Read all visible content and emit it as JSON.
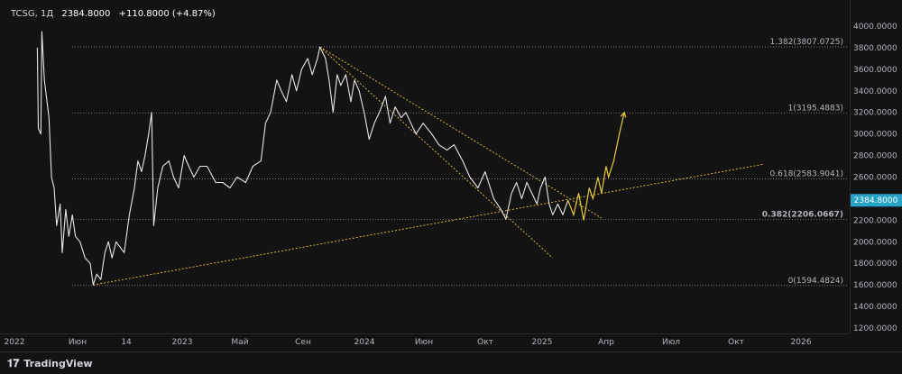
{
  "header": {
    "symbol": "TCSG, 1Д",
    "price": "2384.8000",
    "change": "+110.8000 (+4.87%)"
  },
  "footer": {
    "brand": "TradingView",
    "brand_icon": "tradingview-logo-icon"
  },
  "price_badge": {
    "label": "2384.8000",
    "value": 2384.8,
    "color": "#26a3c7"
  },
  "colors": {
    "price_line": "#e6e6e6",
    "annotation": "#e8c93c",
    "fib": "#8a8a8a",
    "background": "#131313"
  },
  "fib_levels": [
    {
      "label": "1.382(3807.0725)",
      "value": 3807.0725,
      "bold": false
    },
    {
      "label": "1(3195.4883)",
      "value": 3195.4883,
      "bold": false
    },
    {
      "label": "0.618(2583.9041)",
      "value": 2583.9041,
      "bold": false
    },
    {
      "label": "0.382(2206.0667)",
      "value": 2206.0667,
      "bold": true
    },
    {
      "label": "0(1594.4824)",
      "value": 1594.4824,
      "bold": false
    }
  ],
  "chart_data": {
    "type": "line",
    "title": "",
    "xlabel": "",
    "ylabel": "",
    "ylim": [
      1200,
      4000
    ],
    "y_ticks": [
      "4000.0000",
      "3800.0000",
      "3600.0000",
      "3400.0000",
      "3200.0000",
      "3000.0000",
      "2800.0000",
      "2600.0000",
      "2400.0000",
      "2200.0000",
      "2000.0000",
      "1800.0000",
      "1600.0000",
      "1400.0000",
      "1200.0000"
    ],
    "x_ticks": [
      "2022",
      "Июн",
      "14",
      "2023",
      "Май",
      "Сен",
      "2024",
      "Июн",
      "Окт",
      "2025",
      "Апр",
      "Июл",
      "Окт",
      "2026"
    ],
    "x_range": [
      "2022-01-01",
      "2026-04-01"
    ],
    "series": [
      {
        "values": [
          [
            "2022-02-15",
            3800
          ],
          [
            "2022-02-17",
            3050
          ],
          [
            "2022-02-22",
            3000
          ],
          [
            "2022-02-24",
            3950
          ],
          [
            "2022-03-01",
            3500
          ],
          [
            "2022-03-10",
            3150
          ],
          [
            "2022-03-15",
            2600
          ],
          [
            "2022-03-20",
            2500
          ],
          [
            "2022-03-25",
            2150
          ],
          [
            "2022-04-01",
            2350
          ],
          [
            "2022-04-05",
            1900
          ],
          [
            "2022-04-12",
            2300
          ],
          [
            "2022-04-18",
            2050
          ],
          [
            "2022-04-25",
            2250
          ],
          [
            "2022-05-01",
            2050
          ],
          [
            "2022-05-10",
            2000
          ],
          [
            "2022-05-20",
            1850
          ],
          [
            "2022-05-30",
            1800
          ],
          [
            "2022-06-05",
            1600
          ],
          [
            "2022-06-12",
            1700
          ],
          [
            "2022-06-20",
            1650
          ],
          [
            "2022-06-28",
            1900
          ],
          [
            "2022-07-05",
            2000
          ],
          [
            "2022-07-12",
            1850
          ],
          [
            "2022-07-20",
            2000
          ],
          [
            "2022-07-28",
            1950
          ],
          [
            "2022-08-05",
            1900
          ],
          [
            "2022-08-15",
            2250
          ],
          [
            "2022-08-25",
            2500
          ],
          [
            "2022-09-01",
            2750
          ],
          [
            "2022-09-08",
            2650
          ],
          [
            "2022-09-15",
            2800
          ],
          [
            "2022-09-22",
            3000
          ],
          [
            "2022-09-28",
            3200
          ],
          [
            "2022-10-02",
            2150
          ],
          [
            "2022-10-10",
            2500
          ],
          [
            "2022-10-20",
            2700
          ],
          [
            "2022-11-01",
            2750
          ],
          [
            "2022-11-10",
            2600
          ],
          [
            "2022-11-20",
            2500
          ],
          [
            "2022-12-01",
            2800
          ],
          [
            "2022-12-10",
            2700
          ],
          [
            "2022-12-20",
            2600
          ],
          [
            "2023-01-01",
            2700
          ],
          [
            "2023-01-15",
            2700
          ],
          [
            "2023-02-01",
            2550
          ],
          [
            "2023-02-15",
            2550
          ],
          [
            "2023-03-01",
            2500
          ],
          [
            "2023-03-15",
            2600
          ],
          [
            "2023-04-01",
            2550
          ],
          [
            "2023-04-15",
            2700
          ],
          [
            "2023-05-01",
            2750
          ],
          [
            "2023-05-10",
            3100
          ],
          [
            "2023-05-20",
            3200
          ],
          [
            "2023-06-01",
            3500
          ],
          [
            "2023-06-10",
            3400
          ],
          [
            "2023-06-20",
            3300
          ],
          [
            "2023-07-01",
            3550
          ],
          [
            "2023-07-10",
            3400
          ],
          [
            "2023-07-20",
            3600
          ],
          [
            "2023-08-01",
            3700
          ],
          [
            "2023-08-10",
            3550
          ],
          [
            "2023-08-20",
            3700
          ],
          [
            "2023-08-25",
            3807
          ],
          [
            "2023-09-05",
            3700
          ],
          [
            "2023-09-12",
            3500
          ],
          [
            "2023-09-20",
            3200
          ],
          [
            "2023-09-28",
            3550
          ],
          [
            "2023-10-05",
            3450
          ],
          [
            "2023-10-15",
            3550
          ],
          [
            "2023-10-25",
            3300
          ],
          [
            "2023-11-01",
            3500
          ],
          [
            "2023-11-10",
            3400
          ],
          [
            "2023-11-20",
            3200
          ],
          [
            "2023-11-30",
            2950
          ],
          [
            "2023-12-10",
            3100
          ],
          [
            "2023-12-20",
            3200
          ],
          [
            "2024-01-01",
            3350
          ],
          [
            "2024-01-10",
            3100
          ],
          [
            "2024-01-20",
            3250
          ],
          [
            "2024-02-01",
            3150
          ],
          [
            "2024-02-10",
            3200
          ],
          [
            "2024-02-20",
            3100
          ],
          [
            "2024-03-01",
            3000
          ],
          [
            "2024-03-15",
            3100
          ],
          [
            "2024-04-01",
            3000
          ],
          [
            "2024-04-15",
            2900
          ],
          [
            "2024-05-01",
            2850
          ],
          [
            "2024-05-15",
            2900
          ],
          [
            "2024-06-01",
            2750
          ],
          [
            "2024-06-15",
            2600
          ],
          [
            "2024-07-01",
            2500
          ],
          [
            "2024-07-15",
            2650
          ],
          [
            "2024-08-01",
            2400
          ],
          [
            "2024-08-15",
            2300
          ],
          [
            "2024-08-25",
            2210
          ],
          [
            "2024-09-05",
            2450
          ],
          [
            "2024-09-15",
            2550
          ],
          [
            "2024-09-25",
            2400
          ],
          [
            "2024-10-05",
            2550
          ],
          [
            "2024-10-15",
            2450
          ],
          [
            "2024-10-25",
            2350
          ],
          [
            "2024-11-01",
            2500
          ],
          [
            "2024-11-10",
            2600
          ],
          [
            "2024-11-18",
            2350
          ],
          [
            "2024-11-25",
            2250
          ],
          [
            "2024-12-05",
            2350
          ],
          [
            "2024-12-15",
            2250
          ],
          [
            "2024-12-25",
            2384.8
          ]
        ]
      }
    ],
    "annotations": {
      "forecast_path": [
        [
          "2024-12-25",
          2384.8
        ],
        [
          "2025-01-05",
          2250
        ],
        [
          "2025-01-15",
          2450
        ],
        [
          "2025-01-25",
          2200
        ],
        [
          "2025-02-05",
          2500
        ],
        [
          "2025-02-12",
          2400
        ],
        [
          "2025-02-22",
          2600
        ],
        [
          "2025-03-01",
          2450
        ],
        [
          "2025-03-10",
          2700
        ],
        [
          "2025-03-15",
          2600
        ],
        [
          "2025-03-25",
          2750
        ],
        [
          "2025-04-05",
          3000
        ],
        [
          "2025-04-15",
          3200
        ]
      ],
      "upper_trend": [
        [
          "2023-08-25",
          3807
        ],
        [
          "2025-03-01",
          2220
        ]
      ],
      "channel_lower": [
        [
          "2023-08-25",
          3807
        ],
        [
          "2024-11-25",
          1850
        ]
      ],
      "support_trend": [
        [
          "2022-06-05",
          1600
        ],
        [
          "2026-01-15",
          2720
        ]
      ]
    }
  }
}
